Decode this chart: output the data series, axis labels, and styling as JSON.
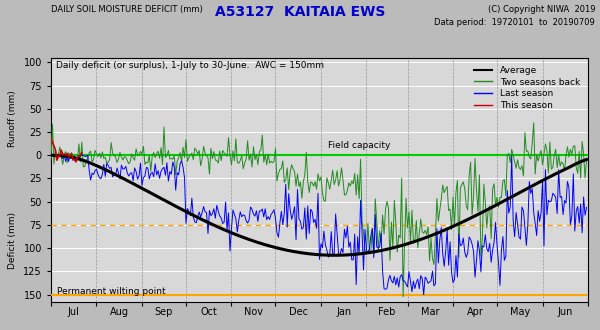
{
  "title": "A53127  KAITAIA EWS",
  "copyright": "(C) Copyright NIWA  2019",
  "subtitle_left": "DAILY SOIL MOISTURE DEFICIT (mm)",
  "subtitle_right": "Data period:  19720101  to  20190709",
  "description": "Daily deficit (or surplus), 1-July to 30-June.  AWC = 150mm",
  "ylabel_top": "Runoff (mm)",
  "ylabel_bottom": "Deficit (mm)",
  "field_capacity_label": "Field capacity",
  "pwp_label": "Permanent wilting point",
  "legend": [
    "Average",
    "Two seasons back",
    "Last season",
    "This season"
  ],
  "legend_colors": [
    "black",
    "#228B22",
    "blue",
    "red"
  ],
  "months": [
    "Jul",
    "Aug",
    "Sep",
    "Oct",
    "Nov",
    "Dec",
    "Jan",
    "Feb",
    "Mar",
    "Apr",
    "May",
    "Jun"
  ],
  "title_color": "#0000cc",
  "fig_bg": "#bbbbbb",
  "plot_bg": "#d8d8d8",
  "green_color": "#228B22",
  "blue_color": "#0000ff",
  "red_color": "#cc0000",
  "field_cap_color": "#00cc00",
  "pwp_color": "#ffa500",
  "stress_color": "#ffa500"
}
